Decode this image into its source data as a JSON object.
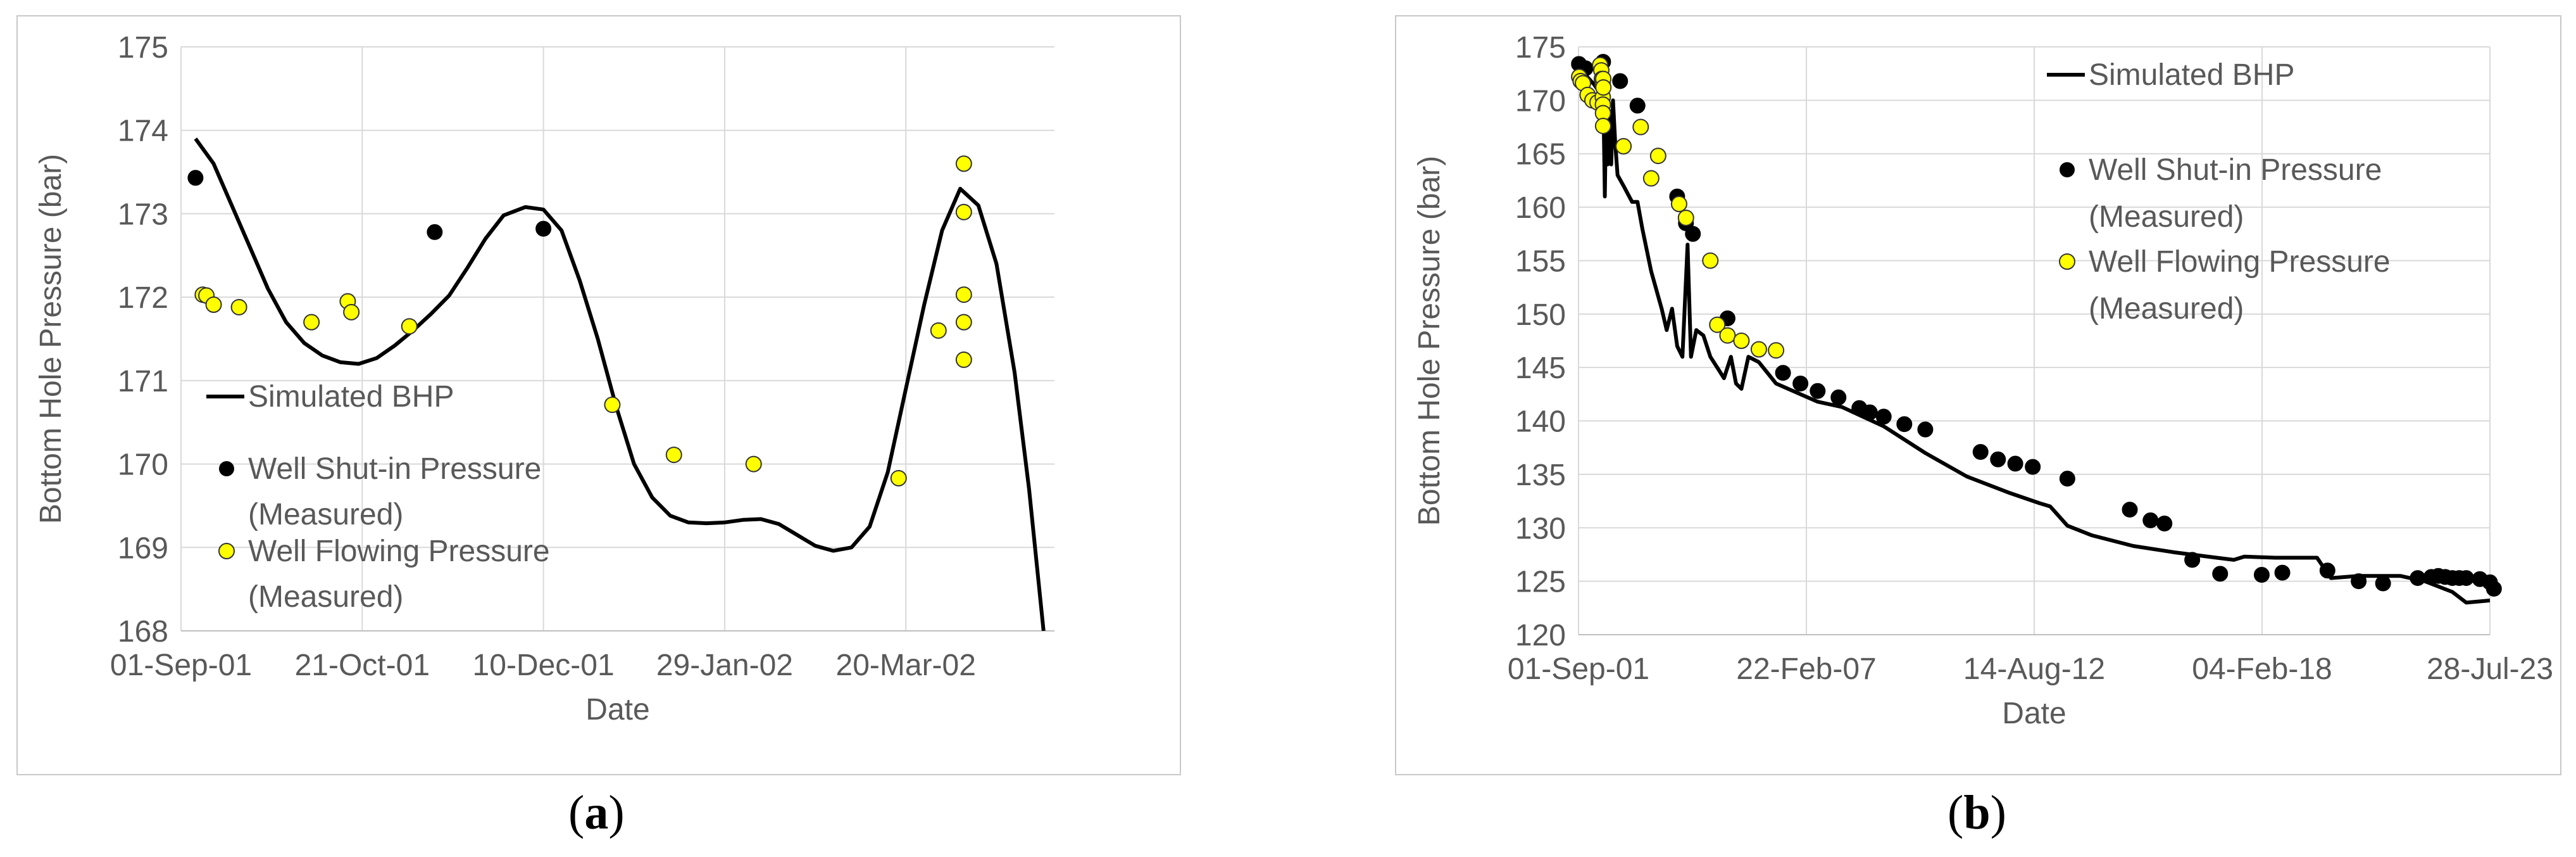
{
  "panels": [
    {
      "id": "a",
      "caption_open": "(",
      "caption_letter": "a",
      "caption_close": ")"
    },
    {
      "id": "b",
      "caption_open": "(",
      "caption_letter": "b",
      "caption_close": ")"
    }
  ],
  "colors": {
    "line": "#000000",
    "shut_in_fill": "#000000",
    "flowing_fill": "#ffff00",
    "flowing_stroke": "#333333",
    "grid": "#d9d9d9",
    "border": "#c8c8c8",
    "text": "#595959"
  },
  "chart_data": [
    {
      "type": "line",
      "panel": "a",
      "xlabel": "Date",
      "ylabel": "Bottom Hole Pressure (bar)",
      "ylim": [
        168,
        175
      ],
      "yticks": [
        168,
        169,
        170,
        171,
        172,
        173,
        174,
        175
      ],
      "xlim": [
        "2001-09-01",
        "2002-04-30"
      ],
      "xticks": [
        {
          "date": "2001-09-01",
          "label": "01-Sep-01"
        },
        {
          "date": "2001-10-21",
          "label": "21-Oct-01"
        },
        {
          "date": "2001-12-10",
          "label": "10-Dec-01"
        },
        {
          "date": "2002-01-29",
          "label": "29-Jan-02"
        },
        {
          "date": "2002-03-20",
          "label": "20-Mar-02"
        }
      ],
      "grid": true,
      "legend_position": "left",
      "legend": [
        {
          "label": "Simulated BHP"
        },
        {
          "label_line1": "Well Shut-in Pressure",
          "label_line2": "(Measured)"
        },
        {
          "label_line1": "Well Flowing Pressure",
          "label_line2": "(Measured)"
        }
      ],
      "series": [
        {
          "name": "Simulated BHP",
          "kind": "line",
          "points": [
            [
              "2001-09-05",
              173.9
            ],
            [
              "2001-09-10",
              173.6
            ],
            [
              "2001-09-15",
              173.1
            ],
            [
              "2001-09-20",
              172.6
            ],
            [
              "2001-09-25",
              172.1
            ],
            [
              "2001-09-30",
              171.7
            ],
            [
              "2001-10-05",
              171.45
            ],
            [
              "2001-10-10",
              171.3
            ],
            [
              "2001-10-15",
              171.22
            ],
            [
              "2001-10-20",
              171.2
            ],
            [
              "2001-10-25",
              171.27
            ],
            [
              "2001-10-30",
              171.42
            ],
            [
              "2001-11-04",
              171.6
            ],
            [
              "2001-11-09",
              171.8
            ],
            [
              "2001-11-14",
              172.02
            ],
            [
              "2001-11-19",
              172.35
            ],
            [
              "2001-11-24",
              172.7
            ],
            [
              "2001-11-29",
              172.98
            ],
            [
              "2001-12-05",
              173.08
            ],
            [
              "2001-12-10",
              173.05
            ],
            [
              "2001-12-15",
              172.8
            ],
            [
              "2001-12-20",
              172.2
            ],
            [
              "2001-12-25",
              171.5
            ],
            [
              "2001-12-30",
              170.7
            ],
            [
              "2002-01-04",
              170.0
            ],
            [
              "2002-01-09",
              169.6
            ],
            [
              "2002-01-14",
              169.38
            ],
            [
              "2002-01-19",
              169.3
            ],
            [
              "2002-01-24",
              169.29
            ],
            [
              "2002-01-29",
              169.3
            ],
            [
              "2002-02-03",
              169.33
            ],
            [
              "2002-02-08",
              169.34
            ],
            [
              "2002-02-13",
              169.28
            ],
            [
              "2002-02-18",
              169.15
            ],
            [
              "2002-02-23",
              169.02
            ],
            [
              "2002-02-28",
              168.96
            ],
            [
              "2002-03-05",
              169.0
            ],
            [
              "2002-03-10",
              169.25
            ],
            [
              "2002-03-15",
              169.9
            ],
            [
              "2002-03-20",
              170.9
            ],
            [
              "2002-03-25",
              171.9
            ],
            [
              "2002-03-30",
              172.8
            ],
            [
              "2002-04-04",
              173.3
            ],
            [
              "2002-04-09",
              173.1
            ],
            [
              "2002-04-14",
              172.4
            ],
            [
              "2002-04-19",
              171.1
            ],
            [
              "2002-04-23",
              169.7
            ],
            [
              "2002-04-27",
              168.0
            ]
          ]
        },
        {
          "name": "Well Shut-in Pressure (Measured)",
          "kind": "marker",
          "points": [
            [
              "2001-09-05",
              173.43
            ],
            [
              "2001-11-10",
              172.78
            ],
            [
              "2001-12-10",
              172.82
            ]
          ]
        },
        {
          "name": "Well Flowing Pressure (Measured)",
          "kind": "marker",
          "points": [
            [
              "2001-09-07",
              172.03
            ],
            [
              "2001-09-08",
              172.02
            ],
            [
              "2001-09-10",
              171.91
            ],
            [
              "2001-09-17",
              171.88
            ],
            [
              "2001-10-07",
              171.7
            ],
            [
              "2001-10-17",
              171.95
            ],
            [
              "2001-10-18",
              171.82
            ],
            [
              "2001-11-03",
              171.65
            ],
            [
              "2001-12-29",
              170.71
            ],
            [
              "2002-01-15",
              170.11
            ],
            [
              "2002-02-06",
              170.0
            ],
            [
              "2002-03-18",
              169.83
            ],
            [
              "2002-03-29",
              171.6
            ],
            [
              "2002-04-05",
              173.6
            ],
            [
              "2002-04-05",
              173.02
            ],
            [
              "2002-04-05",
              172.03
            ],
            [
              "2002-04-05",
              171.7
            ],
            [
              "2002-04-05",
              171.25
            ]
          ]
        }
      ]
    },
    {
      "type": "line",
      "panel": "b",
      "xlabel": "Date",
      "ylabel": "Bottom Hole Pressure (bar)",
      "ylim": [
        120,
        175
      ],
      "yticks": [
        120,
        125,
        130,
        135,
        140,
        145,
        150,
        155,
        160,
        165,
        170,
        175
      ],
      "xlim": [
        "2001-09-01",
        "2023-07-28"
      ],
      "xticks": [
        {
          "date": "2001-09-01",
          "label": "01-Sep-01"
        },
        {
          "date": "2007-02-22",
          "label": "22-Feb-07"
        },
        {
          "date": "2012-08-14",
          "label": "14-Aug-12"
        },
        {
          "date": "2018-02-04",
          "label": "04-Feb-18"
        },
        {
          "date": "2023-07-28",
          "label": "28-Jul-23"
        }
      ],
      "grid": true,
      "legend_position": "top-right",
      "legend": [
        {
          "label": "Simulated BHP"
        },
        {
          "label_line1": "Well Shut-in Pressure",
          "label_line2": "(Measured)"
        },
        {
          "label_line1": "Well Flowing Pressure",
          "label_line2": "(Measured)"
        }
      ],
      "series": [
        {
          "name": "Simulated BHP",
          "kind": "line",
          "points": [
            [
              "2001-09-01",
              173.0
            ],
            [
              "2001-11-15",
              172.2
            ],
            [
              "2002-01-15",
              171.5
            ],
            [
              "2002-03-01",
              170.8
            ],
            [
              "2002-04-01",
              170.3
            ],
            [
              "2002-04-10",
              168.0
            ],
            [
              "2002-04-20",
              161.0
            ],
            [
              "2002-05-01",
              169.5
            ],
            [
              "2002-05-15",
              164.0
            ],
            [
              "2002-06-01",
              169.0
            ],
            [
              "2002-06-15",
              164.0
            ],
            [
              "2002-07-01",
              170.0
            ],
            [
              "2002-07-20",
              166.0
            ],
            [
              "2002-08-10",
              163.0
            ],
            [
              "2002-10-01",
              162.0
            ],
            [
              "2002-12-15",
              160.5
            ],
            [
              "2003-02-01",
              160.5
            ],
            [
              "2003-03-15",
              158.0
            ],
            [
              "2003-06-01",
              154.0
            ],
            [
              "2003-09-01",
              150.5
            ],
            [
              "2003-10-15",
              148.5
            ],
            [
              "2003-12-01",
              150.5
            ],
            [
              "2004-01-15",
              147.0
            ],
            [
              "2004-03-01",
              146.0
            ],
            [
              "2004-04-15",
              156.5
            ],
            [
              "2004-05-15",
              146.0
            ],
            [
              "2004-07-01",
              148.5
            ],
            [
              "2004-09-01",
              148.0
            ],
            [
              "2004-11-01",
              146.0
            ],
            [
              "2005-01-01",
              145.0
            ],
            [
              "2005-03-01",
              144.0
            ],
            [
              "2005-05-01",
              146.0
            ],
            [
              "2005-06-15",
              143.5
            ],
            [
              "2005-08-01",
              143.0
            ],
            [
              "2005-10-01",
              146.0
            ],
            [
              "2006-01-01",
              145.5
            ],
            [
              "2006-06-01",
              143.5
            ],
            [
              "2007-01-01",
              142.5
            ],
            [
              "2007-06-01",
              141.8
            ],
            [
              "2008-01-01",
              141.3
            ],
            [
              "2009-01-01",
              139.5
            ],
            [
              "2010-01-01",
              137.0
            ],
            [
              "2011-01-01",
              134.8
            ],
            [
              "2012-01-01",
              133.3
            ],
            [
              "2012-10-01",
              132.3
            ],
            [
              "2013-01-01",
              132.0
            ],
            [
              "2013-06-01",
              130.2
            ],
            [
              "2014-01-01",
              129.3
            ],
            [
              "2015-01-01",
              128.3
            ],
            [
              "2016-01-01",
              127.7
            ],
            [
              "2017-01-01",
              127.2
            ],
            [
              "2017-06-01",
              127.0
            ],
            [
              "2017-09-01",
              127.3
            ],
            [
              "2018-06-01",
              127.2
            ],
            [
              "2019-06-01",
              127.2
            ],
            [
              "2019-10-01",
              125.3
            ],
            [
              "2020-06-01",
              125.5
            ],
            [
              "2021-06-01",
              125.5
            ],
            [
              "2022-01-01",
              125.0
            ],
            [
              "2022-09-01",
              124.0
            ],
            [
              "2023-01-01",
              123.0
            ],
            [
              "2023-07-28",
              123.2
            ]
          ]
        },
        {
          "name": "Well Shut-in Pressure (Measured)",
          "kind": "marker",
          "points": [
            [
              "2001-09-05",
              173.4
            ],
            [
              "2001-11-01",
              173.0
            ],
            [
              "2002-04-05",
              173.6
            ],
            [
              "2002-09-01",
              171.8
            ],
            [
              "2003-02-01",
              169.5
            ],
            [
              "2004-01-15",
              161.0
            ],
            [
              "2004-04-01",
              158.5
            ],
            [
              "2004-06-01",
              157.5
            ],
            [
              "2005-04-01",
              149.6
            ],
            [
              "2006-08-01",
              144.5
            ],
            [
              "2007-01-01",
              143.5
            ],
            [
              "2007-06-01",
              142.8
            ],
            [
              "2007-12-01",
              142.2
            ],
            [
              "2008-06-01",
              141.2
            ],
            [
              "2008-09-01",
              140.8
            ],
            [
              "2009-01-01",
              140.4
            ],
            [
              "2009-07-01",
              139.7
            ],
            [
              "2010-01-01",
              139.2
            ],
            [
              "2011-05-01",
              137.1
            ],
            [
              "2011-10-01",
              136.4
            ],
            [
              "2012-03-01",
              136.0
            ],
            [
              "2012-08-01",
              135.7
            ],
            [
              "2013-06-01",
              134.6
            ],
            [
              "2014-12-01",
              131.7
            ],
            [
              "2015-06-01",
              130.7
            ],
            [
              "2015-10-01",
              130.4
            ],
            [
              "2016-06-01",
              127.0
            ],
            [
              "2017-02-01",
              125.7
            ],
            [
              "2018-02-01",
              125.6
            ],
            [
              "2018-08-01",
              125.8
            ],
            [
              "2019-09-01",
              126.0
            ],
            [
              "2020-06-01",
              125.0
            ],
            [
              "2021-01-01",
              124.8
            ],
            [
              "2021-11-01",
              125.3
            ],
            [
              "2022-03-01",
              125.4
            ],
            [
              "2022-05-01",
              125.5
            ],
            [
              "2022-07-01",
              125.4
            ],
            [
              "2022-09-01",
              125.3
            ],
            [
              "2022-11-01",
              125.3
            ],
            [
              "2023-01-01",
              125.3
            ],
            [
              "2023-05-01",
              125.2
            ],
            [
              "2023-07-28",
              124.9
            ],
            [
              "2023-09-01",
              124.3
            ]
          ]
        },
        {
          "name": "Well Flowing Pressure (Measured)",
          "kind": "marker",
          "points": [
            [
              "2001-09-07",
              172.2
            ],
            [
              "2001-09-20",
              171.8
            ],
            [
              "2001-10-10",
              171.6
            ],
            [
              "2001-11-20",
              170.5
            ],
            [
              "2002-01-01",
              170.0
            ],
            [
              "2002-02-15",
              169.8
            ],
            [
              "2002-03-10",
              173.3
            ],
            [
              "2002-03-20",
              172.8
            ],
            [
              "2002-03-25",
              172.0
            ],
            [
              "2002-04-01",
              171.5
            ],
            [
              "2002-04-02",
              170.3
            ],
            [
              "2002-04-03",
              169.6
            ],
            [
              "2002-04-04",
              168.8
            ],
            [
              "2002-04-05",
              167.6
            ],
            [
              "2002-04-06",
              172.0
            ],
            [
              "2002-04-07",
              171.2
            ],
            [
              "2002-10-01",
              165.7
            ],
            [
              "2003-03-01",
              167.5
            ],
            [
              "2003-06-01",
              162.7
            ],
            [
              "2003-08-01",
              164.8
            ],
            [
              "2004-02-01",
              160.3
            ],
            [
              "2004-04-01",
              159.0
            ],
            [
              "2004-11-01",
              155.0
            ],
            [
              "2005-01-01",
              149.0
            ],
            [
              "2005-04-01",
              148.0
            ],
            [
              "2005-08-01",
              147.5
            ],
            [
              "2006-01-01",
              146.7
            ],
            [
              "2006-06-01",
              146.6
            ]
          ]
        }
      ]
    }
  ]
}
